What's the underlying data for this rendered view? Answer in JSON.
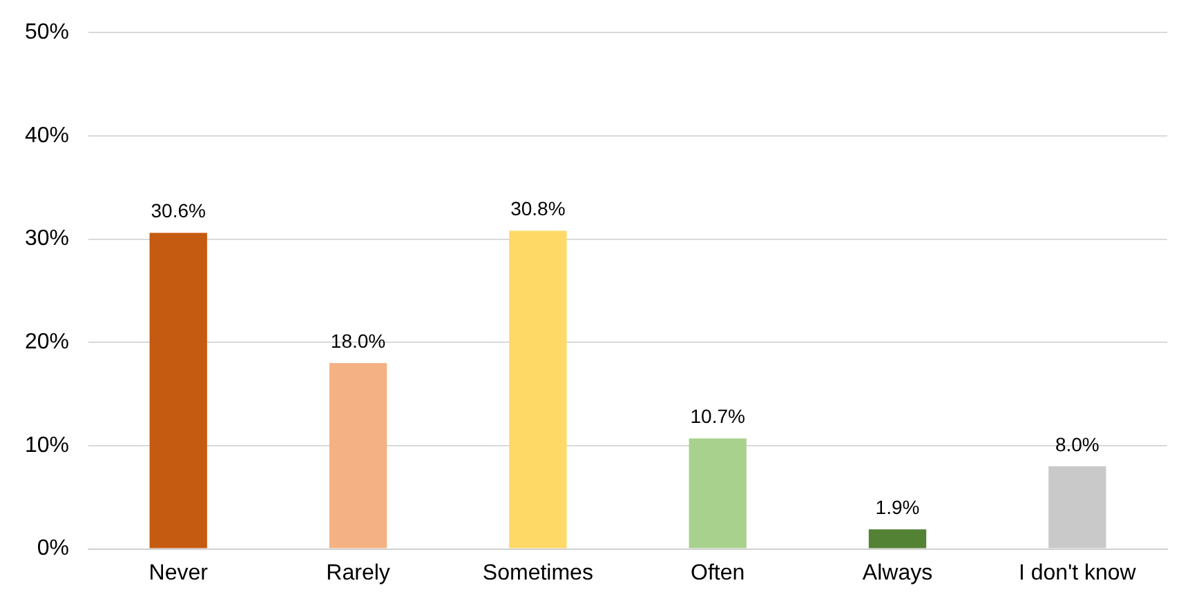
{
  "chart_data": {
    "type": "bar",
    "categories": [
      "Never",
      "Rarely",
      "Sometimes",
      "Often",
      "Always",
      "I don't know"
    ],
    "values": [
      30.6,
      18.0,
      30.8,
      10.7,
      1.9,
      8.0
    ],
    "colors": [
      "#c55a11",
      "#f4b183",
      "#ffd966",
      "#a9d18e",
      "#548235",
      "#c9c9c9"
    ],
    "value_labels": [
      "30.6%",
      "18.0%",
      "30.8%",
      "10.7%",
      "1.9%",
      "8.0%"
    ],
    "ylim": [
      0,
      50
    ],
    "yticks": [
      {
        "value": 0,
        "label": "0%"
      },
      {
        "value": 10,
        "label": "10%"
      },
      {
        "value": 20,
        "label": "20%"
      },
      {
        "value": 30,
        "label": "30%"
      },
      {
        "value": 40,
        "label": "40%"
      },
      {
        "value": 50,
        "label": "50%"
      }
    ],
    "grid": "y",
    "legend": false
  }
}
